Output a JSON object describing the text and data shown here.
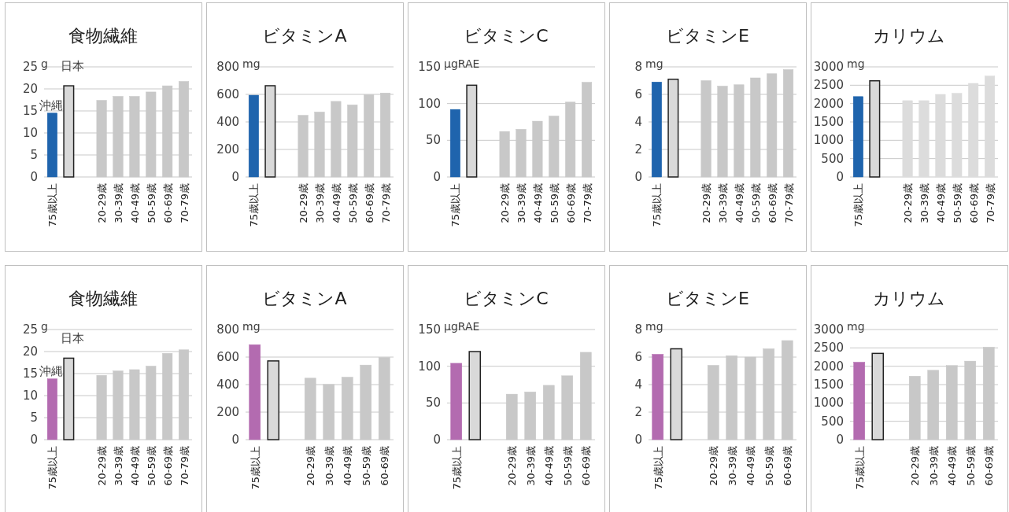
{
  "chart_data": [
    {
      "type": "bar",
      "title": "食物繊維",
      "ylabel": "g",
      "categories": [
        "75歳以上",
        null,
        null,
        "20-29歳",
        "30-39歳",
        "40-49歳",
        "50-59歳",
        "60-69歳",
        "70-79歳"
      ],
      "ylim": [
        0,
        25
      ],
      "yticks": [
        0,
        5,
        10,
        15,
        20,
        25
      ],
      "grid": "y",
      "series": [
        {
          "name": "沖縄",
          "color": "#1f64ad",
          "values": [
            14.5,
            null,
            null,
            null,
            null,
            null,
            null,
            null,
            null
          ]
        },
        {
          "name": "日本",
          "color": "#d9d9d9",
          "values": [
            null,
            20.7,
            null,
            null,
            null,
            null,
            null,
            null,
            null
          ]
        },
        {
          "color": "#c8c8c8",
          "values": [
            null,
            null,
            null,
            17.4,
            18.3,
            18.3,
            19.3,
            20.7,
            21.7
          ]
        }
      ]
    },
    {
      "type": "bar",
      "title": "ビタミンA",
      "ylabel": "mg",
      "categories": [
        "75歳以上",
        null,
        null,
        "20-29歳",
        "30-39歳",
        "40-49歳",
        "50-59歳",
        "60-69歳",
        "70-79歳"
      ],
      "ylim": [
        0,
        800
      ],
      "yticks": [
        0,
        200,
        400,
        600,
        800
      ],
      "grid": "y",
      "series": [
        {
          "color": "#1f64ad",
          "values": [
            594,
            null,
            null,
            null,
            null,
            null,
            null,
            null,
            null
          ]
        },
        {
          "color": "#d9d9d9",
          "values": [
            null,
            663,
            null,
            null,
            null,
            null,
            null,
            null,
            null
          ]
        },
        {
          "color": "#c8c8c8",
          "values": [
            null,
            null,
            null,
            448,
            472,
            549,
            524,
            598,
            610
          ]
        }
      ]
    },
    {
      "type": "bar",
      "title": "ビタミンC",
      "ylabel": "μgRAE",
      "categories": [
        "75歳以上",
        null,
        null,
        "20-29歳",
        "30-39歳",
        "40-49歳",
        "50-59歳",
        "60-69歳",
        "70-79歳"
      ],
      "ylim": [
        0,
        150
      ],
      "yticks": [
        0,
        50,
        100,
        150
      ],
      "grid": "y",
      "series": [
        {
          "color": "#1f64ad",
          "values": [
            92,
            null,
            null,
            null,
            null,
            null,
            null,
            null,
            null
          ]
        },
        {
          "color": "#d9d9d9",
          "values": [
            null,
            125,
            null,
            null,
            null,
            null,
            null,
            null,
            null
          ]
        },
        {
          "color": "#c8c8c8",
          "values": [
            null,
            null,
            null,
            62,
            65,
            76,
            83,
            102,
            129
          ]
        }
      ]
    },
    {
      "type": "bar",
      "title": "ビタミンE",
      "ylabel": "mg",
      "categories": [
        "75歳以上",
        null,
        null,
        "20-29歳",
        "30-39歳",
        "40-49歳",
        "50-59歳",
        "60-69歳",
        "70-79歳"
      ],
      "ylim": [
        0,
        8
      ],
      "yticks": [
        0,
        2,
        4,
        6,
        8
      ],
      "grid": "y",
      "series": [
        {
          "color": "#1f64ad",
          "values": [
            6.9,
            null,
            null,
            null,
            null,
            null,
            null,
            null,
            null
          ]
        },
        {
          "color": "#d9d9d9",
          "values": [
            null,
            7.1,
            null,
            null,
            null,
            null,
            null,
            null,
            null
          ]
        },
        {
          "color": "#c8c8c8",
          "values": [
            null,
            null,
            null,
            7.0,
            6.6,
            6.7,
            7.2,
            7.5,
            7.8
          ]
        }
      ]
    },
    {
      "type": "bar",
      "title": "カリウム",
      "ylabel": "mg",
      "categories": [
        "75歳以上",
        null,
        null,
        "20-29歳",
        "30-39歳",
        "40-49歳",
        "50-59歳",
        "60-69歳",
        "70-79歳"
      ],
      "ylim": [
        0,
        3000
      ],
      "yticks": [
        0,
        500,
        1000,
        1500,
        2000,
        2500,
        3000
      ],
      "grid": "y",
      "series": [
        {
          "color": "#1f64ad",
          "values": [
            2190,
            null,
            null,
            null,
            null,
            null,
            null,
            null,
            null
          ]
        },
        {
          "color": "#d9d9d9",
          "values": [
            null,
            2620,
            null,
            null,
            null,
            null,
            null,
            null,
            null
          ]
        },
        {
          "color": "#dcdcdc",
          "values": [
            null,
            null,
            null,
            2080,
            2080,
            2250,
            2280,
            2550,
            2750
          ]
        }
      ]
    },
    {
      "type": "bar",
      "title": "食物繊維",
      "ylabel": "g",
      "categories": [
        "75歳以上",
        null,
        null,
        "20-29歳",
        "30-39歳",
        "40-49歳",
        "50-59歳",
        "60-69歳",
        "70-79歳"
      ],
      "ylim": [
        0,
        25
      ],
      "yticks": [
        0,
        5,
        10,
        15,
        20,
        25
      ],
      "grid": "y",
      "series": [
        {
          "name": "沖縄",
          "color": "#b36bb0",
          "values": [
            13.8,
            null,
            null,
            null,
            null,
            null,
            null,
            null,
            null
          ]
        },
        {
          "name": "日本",
          "color": "#d9d9d9",
          "values": [
            null,
            18.5,
            null,
            null,
            null,
            null,
            null,
            null,
            null
          ]
        },
        {
          "color": "#c8c8c8",
          "values": [
            null,
            null,
            null,
            14.6,
            15.6,
            15.9,
            16.7,
            19.6,
            20.4
          ]
        }
      ]
    },
    {
      "type": "bar",
      "title": "ビタミンA",
      "ylabel": "mg",
      "categories": [
        "75歳以上",
        null,
        null,
        "20-29歳",
        "30-39歳",
        "40-49歳",
        "50-59歳",
        "60-69歳"
      ],
      "ylim": [
        0,
        800
      ],
      "yticks": [
        0,
        200,
        400,
        600,
        800
      ],
      "grid": "y",
      "series": [
        {
          "color": "#b36bb0",
          "values": [
            690,
            null,
            null,
            null,
            null,
            null,
            null,
            null
          ]
        },
        {
          "color": "#d9d9d9",
          "values": [
            null,
            572,
            null,
            null,
            null,
            null,
            null,
            null
          ]
        },
        {
          "color": "#c8c8c8",
          "values": [
            null,
            null,
            null,
            447,
            401,
            454,
            542,
            597
          ]
        }
      ]
    },
    {
      "type": "bar",
      "title": "ビタミンC",
      "ylabel": "μgRAE",
      "categories": [
        "75歳以上",
        null,
        null,
        "20-29歳",
        "30-39歳",
        "40-49歳",
        "50-59歳",
        "60-69歳"
      ],
      "ylim": [
        0,
        150
      ],
      "yticks": [
        0,
        50,
        100,
        150
      ],
      "grid": "y",
      "series": [
        {
          "color": "#b36bb0",
          "values": [
            104,
            null,
            null,
            null,
            null,
            null,
            null,
            null
          ]
        },
        {
          "color": "#d9d9d9",
          "values": [
            null,
            120,
            null,
            null,
            null,
            null,
            null,
            null
          ]
        },
        {
          "color": "#c8c8c8",
          "values": [
            null,
            null,
            null,
            62,
            65,
            74,
            87,
            119
          ]
        }
      ]
    },
    {
      "type": "bar",
      "title": "ビタミンE",
      "ylabel": "mg",
      "categories": [
        "75歳以上",
        null,
        null,
        "20-29歳",
        "30-39歳",
        "40-49歳",
        "50-59歳",
        "60-69歳"
      ],
      "ylim": [
        0,
        8
      ],
      "yticks": [
        0,
        2,
        4,
        6,
        8
      ],
      "grid": "y",
      "series": [
        {
          "color": "#b36bb0",
          "values": [
            6.2,
            null,
            null,
            null,
            null,
            null,
            null,
            null
          ]
        },
        {
          "color": "#d9d9d9",
          "values": [
            null,
            6.6,
            null,
            null,
            null,
            null,
            null,
            null
          ]
        },
        {
          "color": "#c8c8c8",
          "values": [
            null,
            null,
            null,
            5.4,
            6.1,
            6.0,
            6.6,
            7.2
          ]
        }
      ]
    },
    {
      "type": "bar",
      "title": "カリウム",
      "ylabel": "mg",
      "categories": [
        "75歳以上",
        null,
        null,
        "20-29歳",
        "30-39歳",
        "40-49歳",
        "50-59歳",
        "60-69歳"
      ],
      "ylim": [
        0,
        3000
      ],
      "yticks": [
        0,
        500,
        1000,
        1500,
        2000,
        2500,
        3000
      ],
      "grid": "y",
      "series": [
        {
          "color": "#b36bb0",
          "values": [
            2110,
            null,
            null,
            null,
            null,
            null,
            null,
            null
          ]
        },
        {
          "color": "#d9d9d9",
          "values": [
            null,
            2350,
            null,
            null,
            null,
            null,
            null,
            null
          ]
        },
        {
          "color": "#c8c8c8",
          "values": [
            null,
            null,
            null,
            1730,
            1890,
            2020,
            2140,
            2520
          ]
        }
      ]
    }
  ]
}
